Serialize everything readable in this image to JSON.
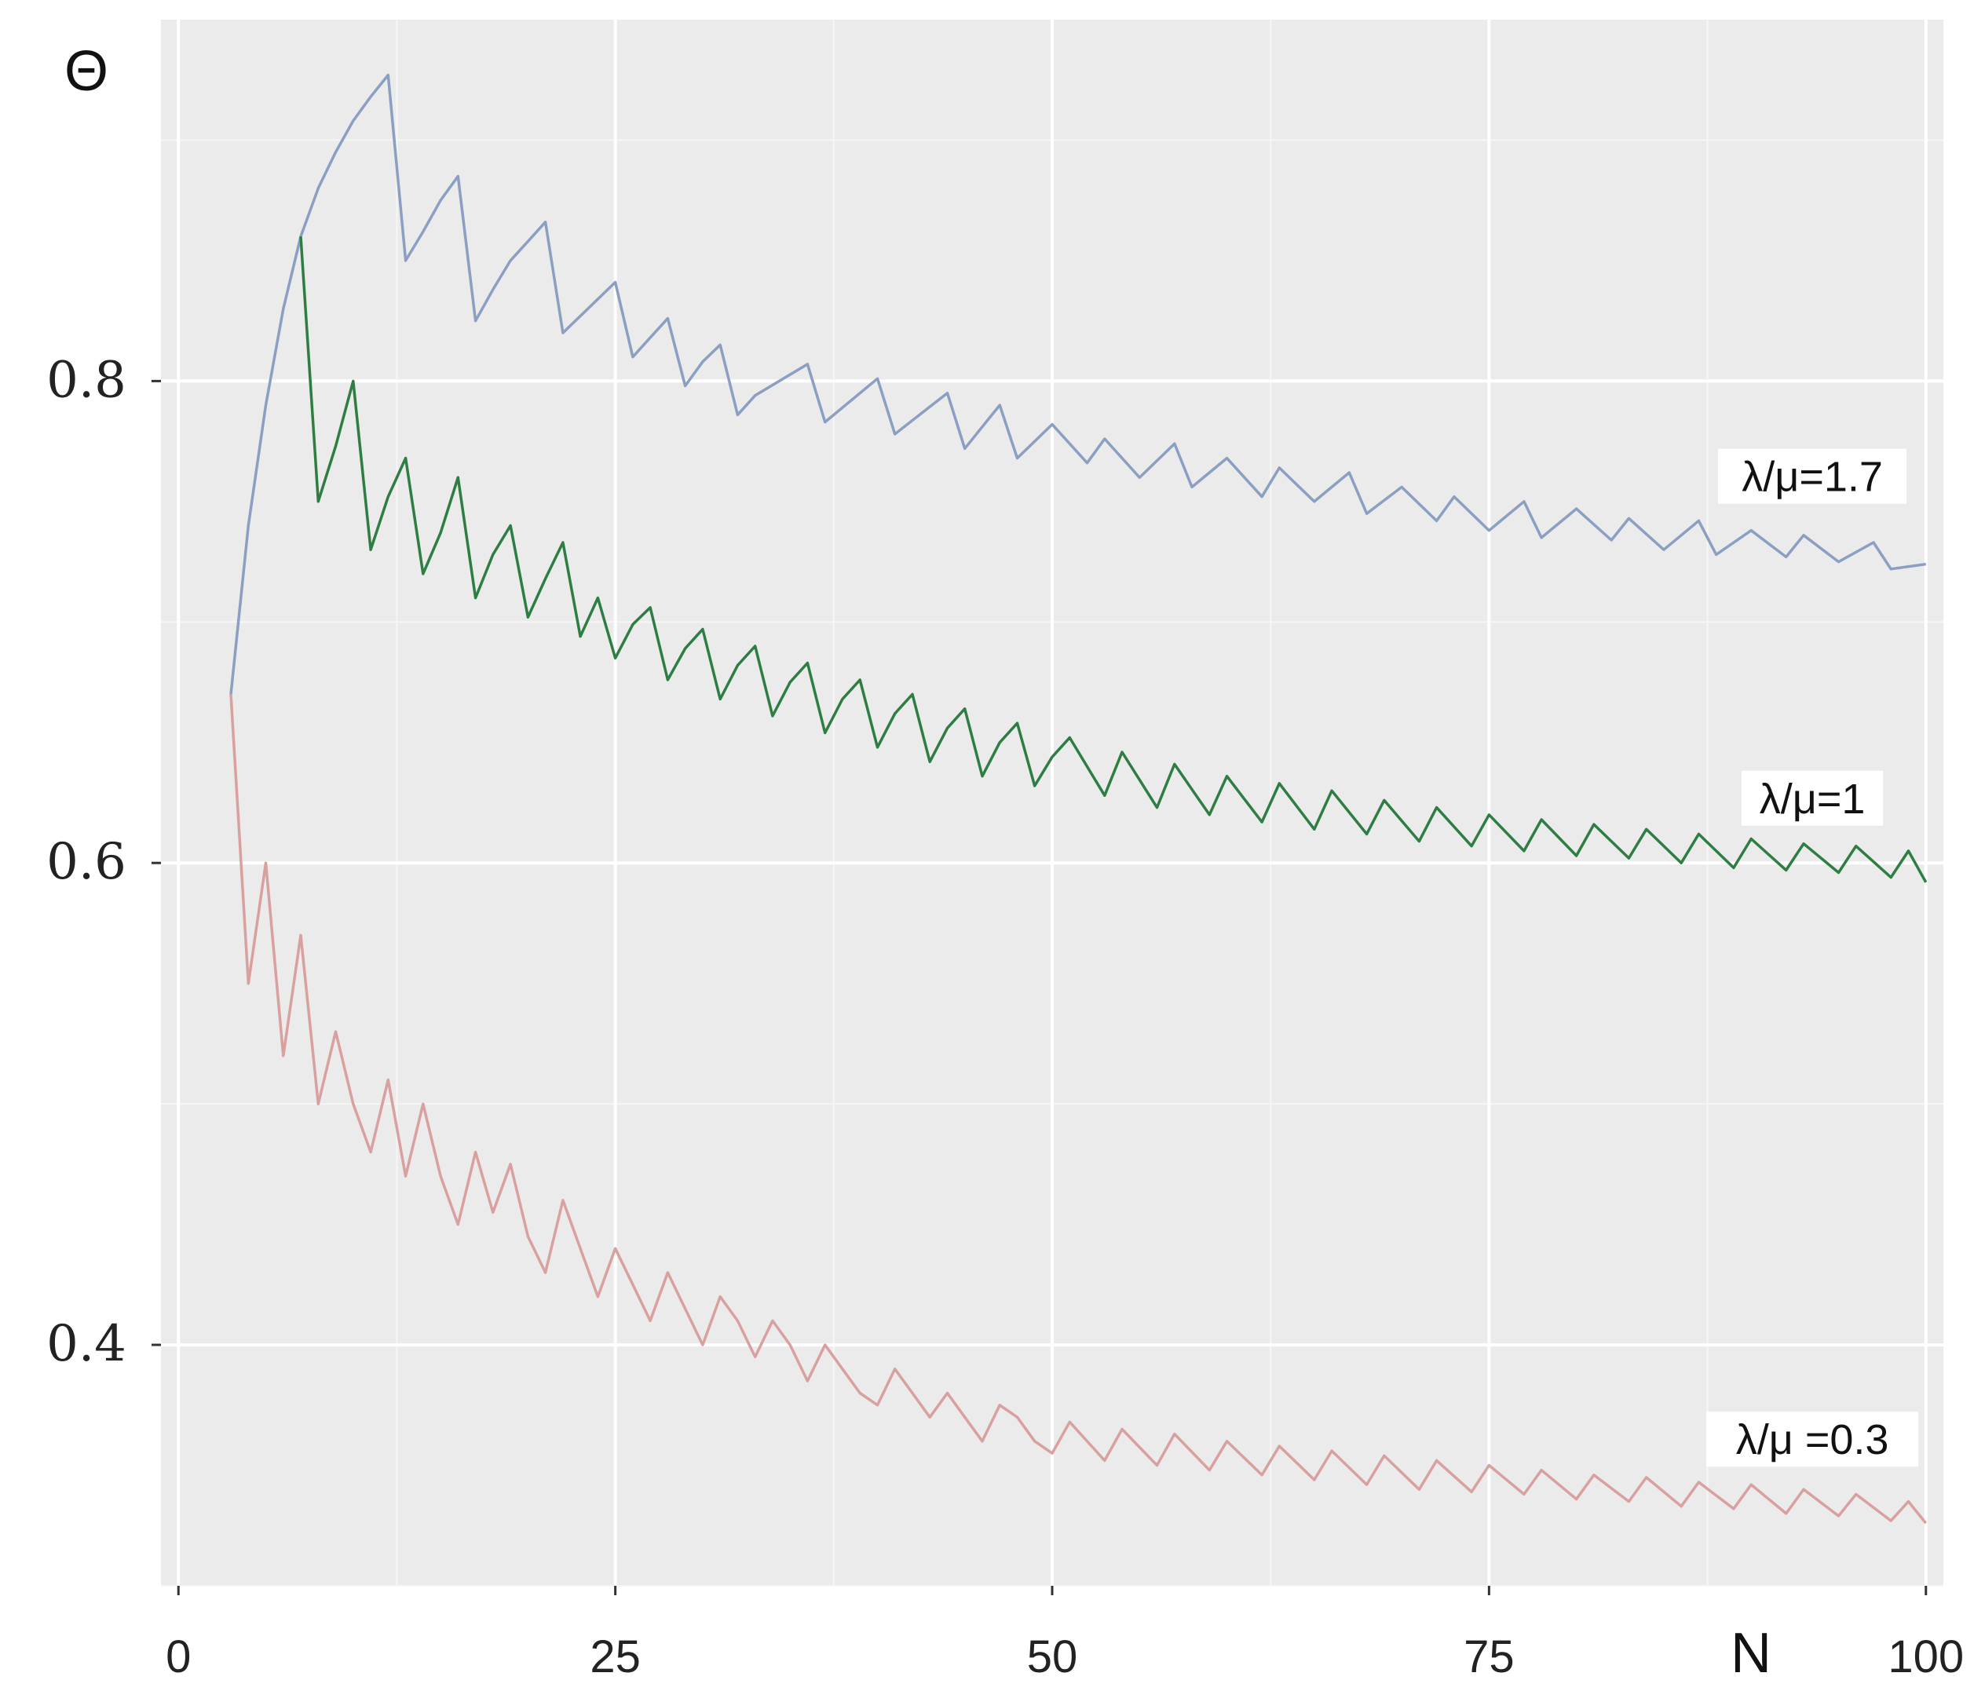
{
  "chart_data": {
    "type": "line",
    "title": "",
    "xlabel": "N",
    "ylabel": "Θ",
    "xlim": [
      -1,
      101
    ],
    "ylim": [
      0.3,
      0.95
    ],
    "x_ticks": [
      0,
      25,
      50,
      75,
      100
    ],
    "x_tick_labels": [
      "0",
      "25",
      "50",
      "75",
      "100"
    ],
    "y_ticks": [
      0.4,
      0.6,
      0.8
    ],
    "y_tick_labels": [
      "0.4",
      "0.6",
      "0.8"
    ],
    "grid": true,
    "background": "#ebebeb",
    "series": [
      {
        "name": "λ/μ=1.7",
        "color": "#8a9fc2",
        "x": [
          3,
          4,
          5,
          6,
          7,
          8,
          9,
          10,
          11,
          12,
          13,
          14,
          15,
          16,
          17,
          18,
          19,
          20,
          21,
          22,
          25,
          26,
          27,
          28,
          29,
          30,
          31,
          32,
          33,
          36,
          37,
          40,
          41,
          44,
          45,
          47,
          48,
          50,
          52,
          53,
          55,
          57,
          58,
          60,
          62,
          63,
          65,
          67,
          68,
          70,
          72,
          73,
          75,
          77,
          78,
          80,
          82,
          83,
          85,
          87,
          88,
          90,
          92,
          93,
          95,
          97,
          98,
          100
        ],
        "y": [
          0.67,
          0.74,
          0.79,
          0.83,
          0.86,
          0.88,
          0.895,
          0.908,
          0.918,
          0.927,
          0.85,
          0.862,
          0.875,
          0.885,
          0.825,
          0.838,
          0.85,
          0.858,
          0.866,
          0.82,
          0.841,
          0.81,
          0.818,
          0.826,
          0.798,
          0.808,
          0.815,
          0.786,
          0.794,
          0.807,
          0.783,
          0.801,
          0.778,
          0.795,
          0.772,
          0.79,
          0.768,
          0.782,
          0.766,
          0.776,
          0.76,
          0.774,
          0.756,
          0.768,
          0.752,
          0.764,
          0.75,
          0.762,
          0.745,
          0.756,
          0.742,
          0.752,
          0.738,
          0.75,
          0.735,
          0.747,
          0.734,
          0.743,
          0.73,
          0.742,
          0.728,
          0.738,
          0.727,
          0.736,
          0.725,
          0.733,
          0.722,
          0.724
        ]
      },
      {
        "name": "λ/μ=1",
        "color": "#2e7d43",
        "x": [
          7,
          8,
          9,
          10,
          11,
          12,
          13,
          14,
          15,
          16,
          17,
          18,
          19,
          20,
          21,
          22,
          23,
          24,
          25,
          26,
          27,
          28,
          29,
          30,
          31,
          32,
          33,
          34,
          35,
          36,
          37,
          38,
          39,
          40,
          41,
          42,
          43,
          44,
          45,
          46,
          47,
          48,
          49,
          50,
          51,
          53,
          54,
          56,
          57,
          59,
          60,
          62,
          63,
          65,
          66,
          68,
          69,
          71,
          72,
          74,
          75,
          77,
          78,
          80,
          81,
          83,
          84,
          86,
          87,
          89,
          90,
          92,
          93,
          95,
          96,
          98,
          99,
          100
        ],
        "y": [
          0.86,
          0.75,
          0.773,
          0.8,
          0.73,
          0.752,
          0.768,
          0.72,
          0.737,
          0.76,
          0.71,
          0.728,
          0.74,
          0.702,
          0.718,
          0.733,
          0.694,
          0.71,
          0.685,
          0.699,
          0.706,
          0.676,
          0.689,
          0.697,
          0.668,
          0.682,
          0.69,
          0.661,
          0.675,
          0.683,
          0.654,
          0.668,
          0.676,
          0.648,
          0.662,
          0.67,
          0.642,
          0.656,
          0.664,
          0.636,
          0.65,
          0.658,
          0.632,
          0.644,
          0.652,
          0.628,
          0.646,
          0.623,
          0.641,
          0.62,
          0.636,
          0.617,
          0.633,
          0.614,
          0.63,
          0.612,
          0.626,
          0.609,
          0.623,
          0.607,
          0.62,
          0.605,
          0.618,
          0.603,
          0.616,
          0.602,
          0.614,
          0.6,
          0.612,
          0.598,
          0.61,
          0.597,
          0.608,
          0.596,
          0.607,
          0.594,
          0.605,
          0.592
        ]
      },
      {
        "name": "λ/μ =0.3",
        "color": "#d9a0a0",
        "x": [
          3,
          4,
          5,
          6,
          7,
          8,
          9,
          10,
          11,
          12,
          13,
          14,
          15,
          16,
          17,
          18,
          19,
          20,
          21,
          22,
          23,
          24,
          25,
          26,
          27,
          28,
          29,
          30,
          31,
          32,
          33,
          34,
          35,
          36,
          37,
          38,
          39,
          40,
          41,
          42,
          43,
          44,
          45,
          46,
          47,
          48,
          49,
          50,
          51,
          53,
          54,
          56,
          57,
          59,
          60,
          62,
          63,
          65,
          66,
          68,
          69,
          71,
          72,
          74,
          75,
          77,
          78,
          80,
          81,
          83,
          84,
          86,
          87,
          89,
          90,
          92,
          93,
          95,
          96,
          98,
          99,
          100
        ],
        "y": [
          0.67,
          0.55,
          0.6,
          0.52,
          0.57,
          0.5,
          0.53,
          0.5,
          0.48,
          0.51,
          0.47,
          0.5,
          0.47,
          0.45,
          0.48,
          0.455,
          0.475,
          0.445,
          0.43,
          0.46,
          0.44,
          0.42,
          0.44,
          0.425,
          0.41,
          0.43,
          0.415,
          0.4,
          0.42,
          0.41,
          0.395,
          0.41,
          0.4,
          0.385,
          0.4,
          0.39,
          0.38,
          0.375,
          0.39,
          0.38,
          0.37,
          0.38,
          0.37,
          0.36,
          0.375,
          0.37,
          0.36,
          0.355,
          0.368,
          0.352,
          0.365,
          0.35,
          0.363,
          0.348,
          0.36,
          0.346,
          0.358,
          0.344,
          0.356,
          0.342,
          0.354,
          0.34,
          0.352,
          0.339,
          0.35,
          0.338,
          0.348,
          0.336,
          0.346,
          0.335,
          0.345,
          0.333,
          0.343,
          0.332,
          0.342,
          0.33,
          0.34,
          0.329,
          0.338,
          0.327,
          0.335,
          0.326
        ]
      }
    ],
    "annotations": [
      {
        "text": "λ/μ=1.7",
        "series": 0
      },
      {
        "text": "λ/μ=1",
        "series": 1
      },
      {
        "text": "λ/μ =0.3",
        "series": 2
      }
    ]
  }
}
